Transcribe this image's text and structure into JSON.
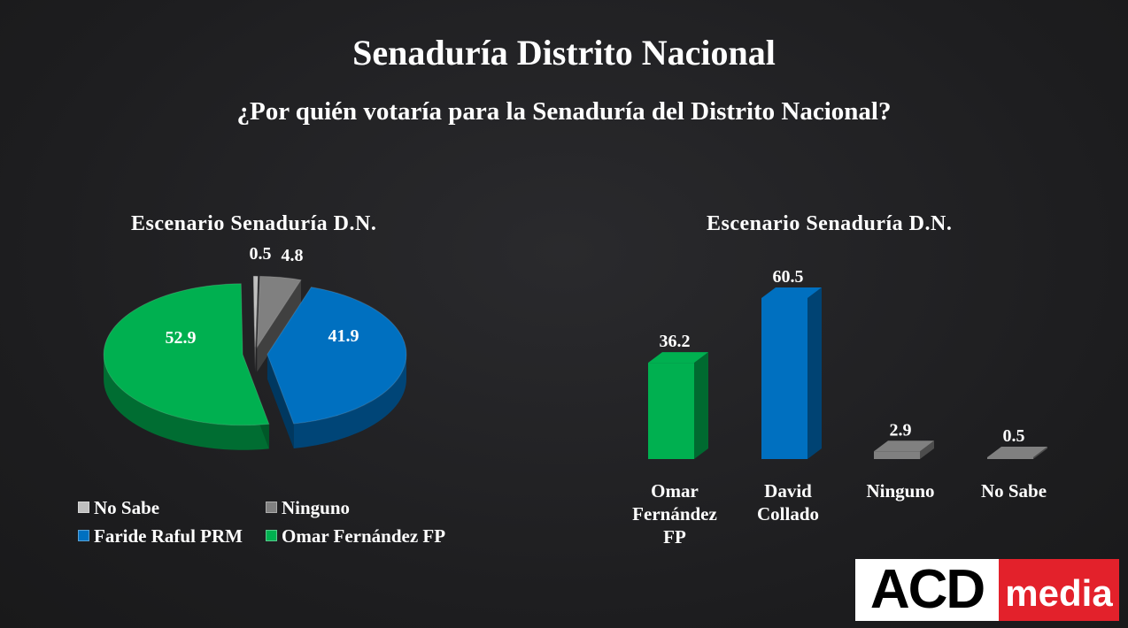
{
  "title": "Senaduría Distrito Nacional",
  "subtitle": "¿Por quién votaría para la Senaduría del Distrito Nacional?",
  "colors": {
    "green": "#00b050",
    "blue": "#0070c0",
    "gray": "#808080",
    "white": "#ffffff"
  },
  "chart_data": [
    {
      "type": "pie",
      "title": "Escenario Senaduría D.N.",
      "slices": [
        {
          "label": "Omar Fernández FP",
          "value": 52.9,
          "color": "#00b050"
        },
        {
          "label": "Faride Raful PRM",
          "value": 41.9,
          "color": "#0070c0"
        },
        {
          "label": "Ninguno",
          "value": 4.8,
          "color": "#808080"
        },
        {
          "label": "No Sabe",
          "value": 0.5,
          "color": "#bfbfbf"
        }
      ],
      "legend": [
        {
          "label": "No Sabe",
          "color": "#bfbfbf"
        },
        {
          "label": "Ninguno",
          "color": "#808080"
        },
        {
          "label": "Faride Raful PRM",
          "color": "#0070c0"
        },
        {
          "label": "Omar Fernández FP",
          "color": "#00b050"
        }
      ],
      "legend_position": "bottom"
    },
    {
      "type": "bar",
      "title": "Escenario Senaduría D.N.",
      "categories": [
        "Omar Fernández FP",
        "David Collado",
        "Ninguno",
        "No Sabe"
      ],
      "category_lines": [
        [
          "Omar",
          "Fernández",
          "FP"
        ],
        [
          "David",
          "Collado"
        ],
        [
          "Ninguno"
        ],
        [
          "No Sabe"
        ]
      ],
      "values": [
        36.2,
        60.5,
        2.9,
        0.5
      ],
      "value_labels": [
        "36.2",
        "60.5",
        "2.9",
        "0.5"
      ],
      "colors": [
        "#00b050",
        "#0070c0",
        "#808080",
        "#808080"
      ],
      "ylim": [
        0,
        60.5
      ],
      "grid": false
    }
  ],
  "logo": {
    "part1": "ACD",
    "part2": "media"
  }
}
